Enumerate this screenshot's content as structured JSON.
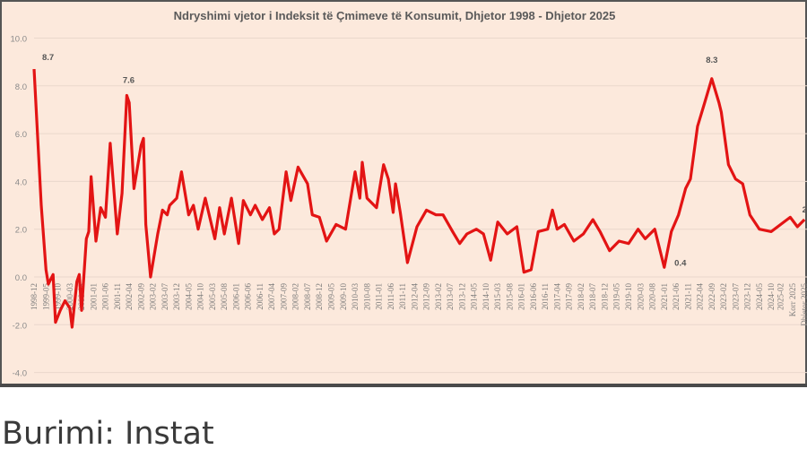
{
  "chart_data": {
    "type": "line",
    "title": "Ndryshimi vjetor i Indeksit të Çmimeve të Konsumit, Dhjetor 1998 - Dhjetor 2025",
    "xlabel": "",
    "ylabel": "",
    "ylim": [
      -4.0,
      10.0
    ],
    "yticks": [
      "10.0",
      "8.0",
      "6.0",
      "4.0",
      "2.0",
      "0.0",
      "-2.0",
      "-4.0"
    ],
    "grid": true,
    "line_color": "#e31414",
    "background_color": "#fce9dc",
    "xticks": [
      "1998-12",
      "1999-05",
      "1999-10",
      "2000-03",
      "2000-08",
      "2001-01",
      "2001-06",
      "2001-11",
      "2002-04",
      "2002-09",
      "2003-02",
      "2003-07",
      "2003-12",
      "2004-05",
      "2004-10",
      "2005-03",
      "2005-08",
      "2006-01",
      "2006-06",
      "2006-11",
      "2007-04",
      "2007-09",
      "2008-02",
      "2008-07",
      "2008-12",
      "2009-05",
      "2009-10",
      "2010-03",
      "2010-08",
      "2011-01",
      "2011-06",
      "2011-11",
      "2012-04",
      "2012-09",
      "2013-02",
      "2013-07",
      "2013-12",
      "2014-05",
      "2014-10",
      "2015-03",
      "2015-08",
      "2016-01",
      "2016-06",
      "2016-11",
      "2017-04",
      "2017-09",
      "2018-02",
      "2018-07",
      "2018-12",
      "2019-05",
      "2019-10",
      "2020-03",
      "2020-08",
      "2021-01",
      "2021-06",
      "2021-11",
      "2022-04",
      "2022-09",
      "2023-02",
      "2023-07",
      "2023-12",
      "2024-05",
      "2024-10",
      "2025-02",
      "Korr 2025",
      "Dhjetor 2025"
    ],
    "series": [
      {
        "points": [
          [
            "1998-12",
            8.7
          ],
          [
            "1999-03",
            3.0
          ],
          [
            "1999-05",
            0.3
          ],
          [
            "1999-06",
            -0.3
          ],
          [
            "1999-08",
            0.1
          ],
          [
            "1999-09",
            -1.9
          ],
          [
            "1999-11",
            -1.4
          ],
          [
            "2000-01",
            -1.0
          ],
          [
            "2000-03",
            -1.3
          ],
          [
            "2000-04",
            -2.1
          ],
          [
            "2000-06",
            -0.2
          ],
          [
            "2000-07",
            0.1
          ],
          [
            "2000-08",
            -1.4
          ],
          [
            "2000-10",
            1.6
          ],
          [
            "2000-11",
            1.9
          ],
          [
            "2000-12",
            4.2
          ],
          [
            "2001-02",
            1.5
          ],
          [
            "2001-04",
            2.9
          ],
          [
            "2001-06",
            2.5
          ],
          [
            "2001-08",
            5.6
          ],
          [
            "2001-11",
            1.8
          ],
          [
            "2002-01",
            3.5
          ],
          [
            "2002-03",
            7.6
          ],
          [
            "2002-04",
            7.3
          ],
          [
            "2002-06",
            3.7
          ],
          [
            "2002-09",
            5.5
          ],
          [
            "2002-10",
            5.8
          ],
          [
            "2002-11",
            2.2
          ],
          [
            "2003-01",
            0.0
          ],
          [
            "2003-04",
            1.8
          ],
          [
            "2003-06",
            2.8
          ],
          [
            "2003-08",
            2.6
          ],
          [
            "2003-09",
            3.0
          ],
          [
            "2003-12",
            3.3
          ],
          [
            "2004-02",
            4.4
          ],
          [
            "2004-05",
            2.6
          ],
          [
            "2004-07",
            3.0
          ],
          [
            "2004-09",
            2.0
          ],
          [
            "2004-12",
            3.3
          ],
          [
            "2005-04",
            1.6
          ],
          [
            "2005-06",
            2.9
          ],
          [
            "2005-08",
            1.8
          ],
          [
            "2005-11",
            3.3
          ],
          [
            "2006-02",
            1.4
          ],
          [
            "2006-04",
            3.2
          ],
          [
            "2006-07",
            2.6
          ],
          [
            "2006-09",
            3.0
          ],
          [
            "2006-12",
            2.4
          ],
          [
            "2007-03",
            2.9
          ],
          [
            "2007-05",
            1.8
          ],
          [
            "2007-07",
            2.0
          ],
          [
            "2007-10",
            4.4
          ],
          [
            "2007-12",
            3.2
          ],
          [
            "2008-03",
            4.6
          ],
          [
            "2008-07",
            3.9
          ],
          [
            "2008-09",
            2.6
          ],
          [
            "2008-12",
            2.5
          ],
          [
            "2009-03",
            1.5
          ],
          [
            "2009-07",
            2.2
          ],
          [
            "2009-11",
            2.0
          ],
          [
            "2010-03",
            4.4
          ],
          [
            "2010-05",
            3.3
          ],
          [
            "2010-06",
            4.8
          ],
          [
            "2010-08",
            3.3
          ],
          [
            "2010-12",
            2.9
          ],
          [
            "2011-03",
            4.7
          ],
          [
            "2011-05",
            4.1
          ],
          [
            "2011-07",
            2.7
          ],
          [
            "2011-08",
            3.9
          ],
          [
            "2011-10",
            2.7
          ],
          [
            "2012-01",
            0.6
          ],
          [
            "2012-05",
            2.1
          ],
          [
            "2012-09",
            2.8
          ],
          [
            "2013-01",
            2.6
          ],
          [
            "2013-04",
            2.6
          ],
          [
            "2013-08",
            1.9
          ],
          [
            "2013-11",
            1.4
          ],
          [
            "2014-02",
            1.8
          ],
          [
            "2014-06",
            2.0
          ],
          [
            "2014-09",
            1.8
          ],
          [
            "2014-12",
            0.7
          ],
          [
            "2015-03",
            2.3
          ],
          [
            "2015-07",
            1.8
          ],
          [
            "2015-11",
            2.1
          ],
          [
            "2016-02",
            0.2
          ],
          [
            "2016-05",
            0.3
          ],
          [
            "2016-08",
            1.9
          ],
          [
            "2016-12",
            2.0
          ],
          [
            "2017-02",
            2.8
          ],
          [
            "2017-04",
            2.0
          ],
          [
            "2017-07",
            2.2
          ],
          [
            "2017-11",
            1.5
          ],
          [
            "2018-03",
            1.8
          ],
          [
            "2018-07",
            2.4
          ],
          [
            "2018-10",
            1.9
          ],
          [
            "2019-02",
            1.1
          ],
          [
            "2019-06",
            1.5
          ],
          [
            "2019-10",
            1.4
          ],
          [
            "2020-02",
            2.0
          ],
          [
            "2020-05",
            1.6
          ],
          [
            "2020-09",
            2.0
          ],
          [
            "2021-01",
            0.4
          ],
          [
            "2021-04",
            1.9
          ],
          [
            "2021-07",
            2.6
          ],
          [
            "2021-10",
            3.7
          ],
          [
            "2021-12",
            4.1
          ],
          [
            "2022-03",
            6.3
          ],
          [
            "2022-06",
            7.3
          ],
          [
            "2022-09",
            8.3
          ],
          [
            "2022-12",
            7.3
          ],
          [
            "2023-01",
            6.9
          ],
          [
            "2023-04",
            4.7
          ],
          [
            "2023-07",
            4.1
          ],
          [
            "2023-10",
            3.9
          ],
          [
            "2024-01",
            2.6
          ],
          [
            "2024-05",
            2.0
          ],
          [
            "2024-10",
            1.9
          ],
          [
            "2025-02",
            2.2
          ],
          [
            "2025-06",
            2.5
          ],
          [
            "2025-09",
            2.1
          ],
          [
            "2025-12",
            2.4
          ]
        ]
      }
    ],
    "annotations": [
      {
        "text": "8.7",
        "date": "1998-12",
        "value": 8.7
      },
      {
        "text": "7.6",
        "date": "2002-03",
        "value": 7.6
      },
      {
        "text": "0.4",
        "date": "2021-01",
        "value": 0.4
      },
      {
        "text": "8.3",
        "date": "2022-09",
        "value": 8.3
      },
      {
        "text": "2",
        "date": "2025-12",
        "value": 2.4
      }
    ]
  },
  "source": "Burimi: Instat"
}
